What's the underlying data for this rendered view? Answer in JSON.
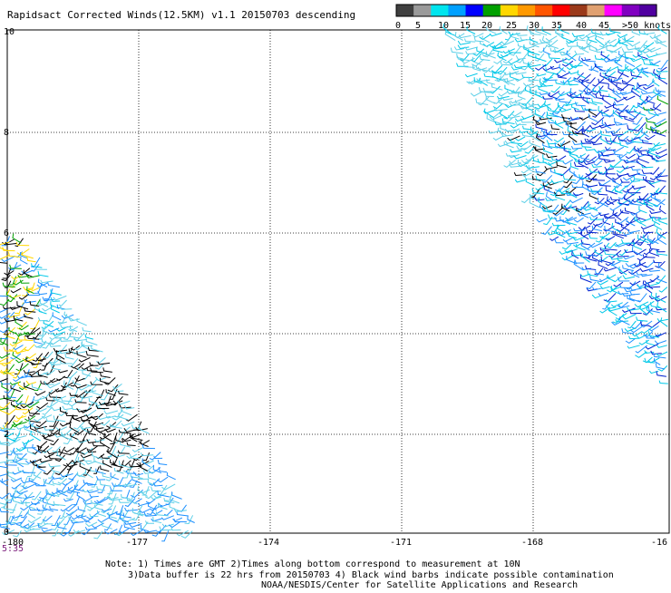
{
  "title": "Rapidsact Corrected Winds(12.5KM) v1.1 20150703 descending",
  "legend": {
    "labels": [
      "0",
      "5",
      "10",
      "15",
      "20",
      "25",
      "30",
      "35",
      "40",
      "45",
      ">50 knots"
    ],
    "colors": [
      "#404040",
      "#9a9a9a",
      "#00e5ee",
      "#00a0ff",
      "#0000ff",
      "#00a000",
      "#ffd700",
      "#ff9900",
      "#ff5500",
      "#ff0000",
      "#9b3a1a",
      "#e0a070",
      "#ff00ff",
      "#8000c0",
      "#5000a0"
    ]
  },
  "axes": {
    "lat_ticks": [
      "10",
      "8",
      "6",
      "4",
      "2",
      "0"
    ],
    "lon_ticks": [
      "-180",
      "-177",
      "-174",
      "-171",
      "-168",
      "-16"
    ]
  },
  "time_label": "5:35",
  "notes": {
    "line1": "Note: 1) Times are GMT 2)Times along bottom correspond to measurement at 10N",
    "line2": "3)Data buffer is 22 hrs from 20150703 4) Black wind barbs indicate possible contamination",
    "line3": "NOAA/NESDIS/Center for Satellite Applications and Research"
  },
  "barb_colors": {
    "light_cyan": "#5fd0e8",
    "cyan": "#00c8e8",
    "mid_blue": "#1e90ff",
    "dark_blue": "#0020d0",
    "black": "#000000",
    "green": "#00a000",
    "yellow": "#ffd700"
  }
}
